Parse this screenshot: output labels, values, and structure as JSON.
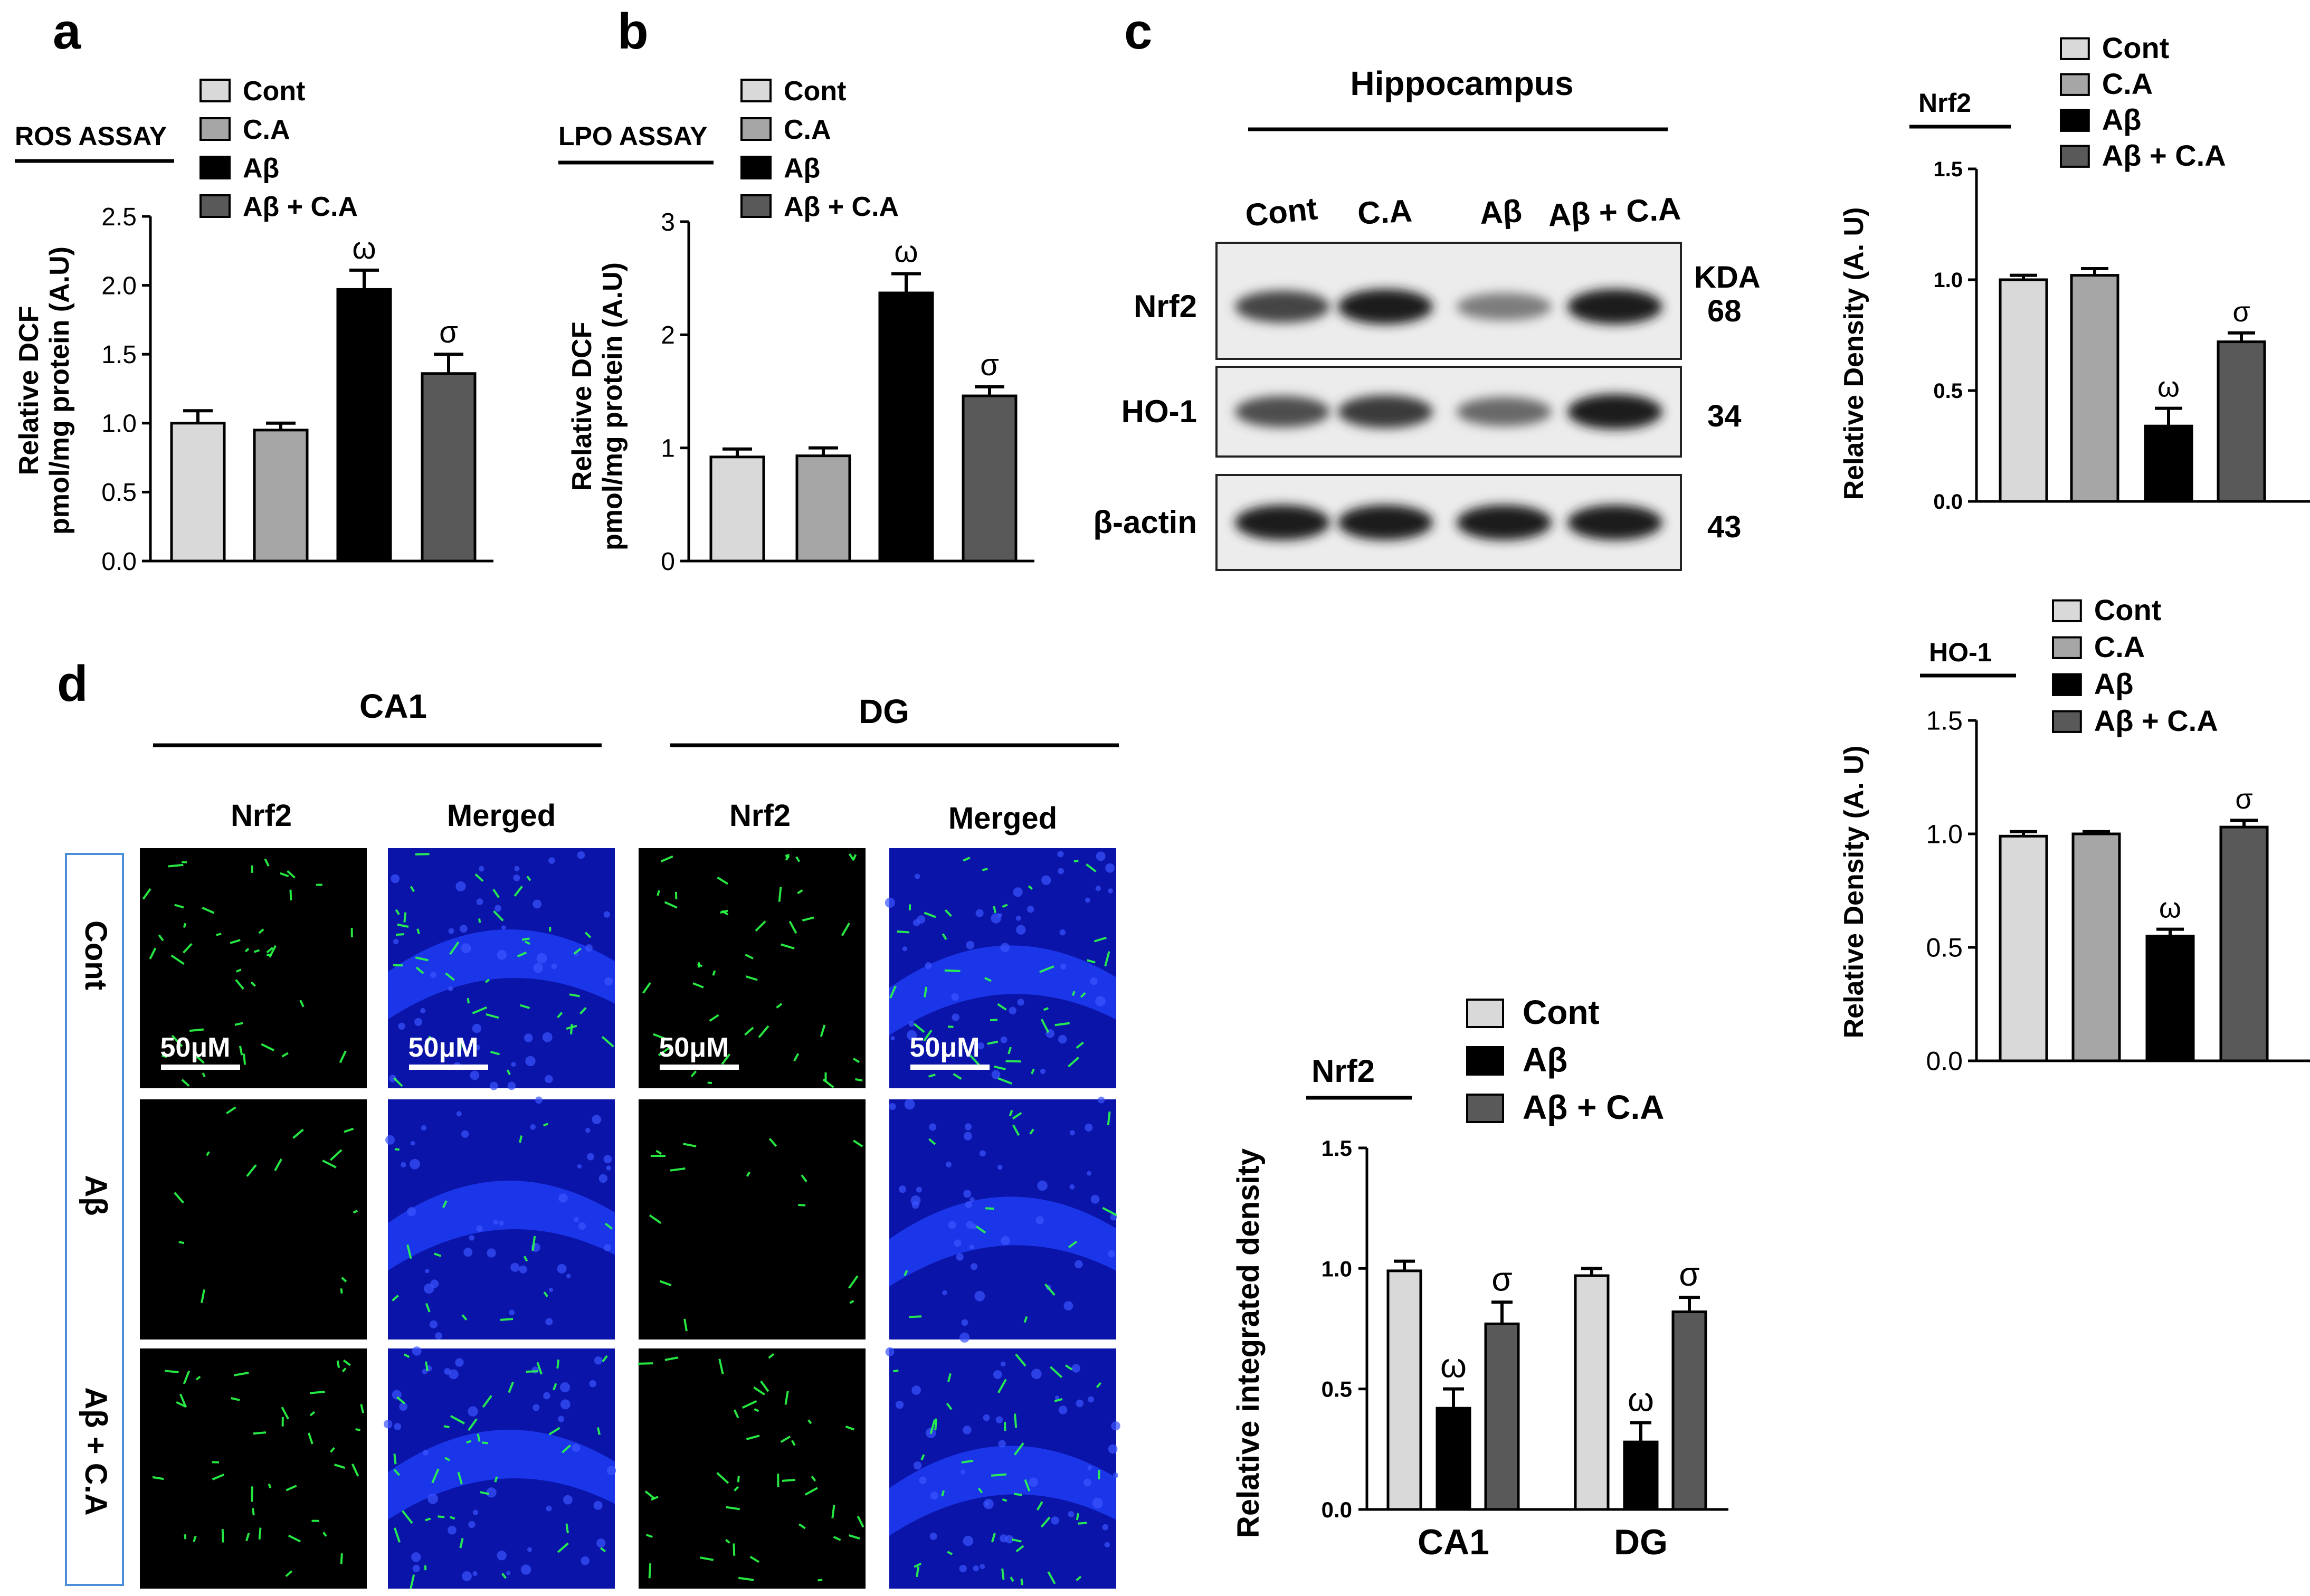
{
  "panel_letters": {
    "a": "a",
    "b": "b",
    "c": "c",
    "d": "d"
  },
  "colors": {
    "cont": "#d9d9d9",
    "ca": "#a6a6a6",
    "ab": "#000000",
    "ab_ca": "#595959"
  },
  "legend_labels": [
    "Cont",
    "C.A",
    "Aβ",
    "Aβ + C.A"
  ],
  "legend_labels_3": [
    "Cont",
    "Aβ",
    "Aβ + C.A"
  ],
  "sig": {
    "omega": "ω",
    "sigma": "σ"
  },
  "chart_data": [
    {
      "id": "a",
      "type": "bar",
      "title": "ROS ASSAY",
      "ylabel_line1": "Relative DCF",
      "ylabel_line2": "pmol/mg protein (A.U)",
      "categories": [
        "Cont",
        "C.A",
        "Aβ",
        "Aβ + C.A"
      ],
      "values": [
        1.0,
        0.95,
        1.97,
        1.36
      ],
      "errors": [
        0.09,
        0.05,
        0.14,
        0.14
      ],
      "annotations": [
        "",
        "",
        "ω",
        "σ"
      ],
      "ylim": [
        0,
        2.5
      ],
      "ticks": [
        "0.0",
        "0.5",
        "1.0",
        "1.5",
        "2.0",
        "2.5"
      ]
    },
    {
      "id": "b",
      "type": "bar",
      "title": "LPO ASSAY",
      "ylabel_line1": "Relative DCF",
      "ylabel_line2": "pmol/mg protein (A.U)",
      "categories": [
        "Cont",
        "C.A",
        "Aβ",
        "Aβ + C.A"
      ],
      "values": [
        0.92,
        0.93,
        2.37,
        1.46
      ],
      "errors": [
        0.07,
        0.07,
        0.17,
        0.08
      ],
      "annotations": [
        "",
        "",
        "ω",
        "σ"
      ],
      "ylim": [
        0,
        3
      ],
      "ticks": [
        "0",
        "1",
        "2",
        "3"
      ]
    },
    {
      "id": "c-nrf2",
      "type": "bar",
      "title": "Nrf2",
      "ylabel_line1": "Relative Density (A. U)",
      "categories": [
        "Cont",
        "C.A",
        "Aβ",
        "Aβ + C.A"
      ],
      "values": [
        1.0,
        1.02,
        0.34,
        0.72
      ],
      "errors": [
        0.02,
        0.03,
        0.08,
        0.04
      ],
      "annotations": [
        "",
        "",
        "ω",
        "σ"
      ],
      "ylim": [
        0,
        1.5
      ],
      "ticks": [
        "0.0",
        "0.5",
        "1.0",
        "1.5"
      ]
    },
    {
      "id": "c-ho1",
      "type": "bar",
      "title": "HO-1",
      "ylabel_line1": "Relative Density (A. U)",
      "categories": [
        "Cont",
        "C.A",
        "Aβ",
        "Aβ + C.A"
      ],
      "values": [
        0.99,
        1.0,
        0.55,
        1.03
      ],
      "errors": [
        0.02,
        0.01,
        0.03,
        0.03
      ],
      "annotations": [
        "",
        "",
        "ω",
        "σ"
      ],
      "ylim": [
        0,
        1.5
      ],
      "ticks": [
        "0.0",
        "0.5",
        "1.0",
        "1.5"
      ]
    },
    {
      "id": "d-nrf2",
      "type": "bar",
      "title": "Nrf2",
      "ylabel_line1": "Relative integrated density",
      "groups": [
        "CA1",
        "DG"
      ],
      "series": [
        {
          "name": "Cont",
          "values": [
            0.99,
            0.97
          ],
          "errors": [
            0.04,
            0.03
          ],
          "annotations": [
            "",
            ""
          ]
        },
        {
          "name": "Aβ",
          "values": [
            0.42,
            0.28
          ],
          "errors": [
            0.08,
            0.08
          ],
          "annotations": [
            "ω",
            "ω"
          ]
        },
        {
          "name": "Aβ + C.A",
          "values": [
            0.77,
            0.82
          ],
          "errors": [
            0.09,
            0.06
          ],
          "annotations": [
            "σ",
            "σ"
          ]
        }
      ],
      "ylim": [
        0,
        1.5
      ],
      "ticks": [
        "0.0",
        "0.5",
        "1.0",
        "1.5"
      ]
    }
  ],
  "western": {
    "title": "Hippocampus",
    "lanes": [
      "Cont",
      "C.A",
      "Aβ",
      "Aβ + C.A"
    ],
    "kda_label": "KDA",
    "rows": [
      {
        "label": "Nrf2",
        "kda": "68",
        "intensity": [
          0.75,
          0.95,
          0.45,
          0.95
        ]
      },
      {
        "label": "HO-1",
        "kda": "34",
        "intensity": [
          0.7,
          0.8,
          0.55,
          0.95
        ]
      },
      {
        "label": "β-actin",
        "kda": "43",
        "intensity": [
          0.95,
          0.95,
          0.95,
          0.95
        ]
      }
    ]
  },
  "micro": {
    "regions": [
      "CA1",
      "DG"
    ],
    "columns": [
      "Nrf2",
      "Merged",
      "Nrf2",
      "Merged"
    ],
    "rows": [
      "Cont",
      "Aβ",
      "Aβ + C.A"
    ],
    "scale_label": "50μM",
    "green_density": [
      0.9,
      0.3,
      0.85
    ]
  }
}
